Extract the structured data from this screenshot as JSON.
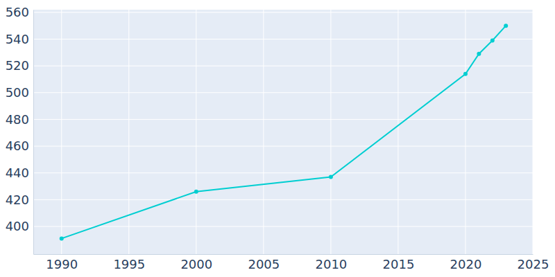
{
  "chart_data": {
    "type": "line",
    "x": [
      1990,
      2000,
      2010,
      2020,
      2021,
      2022,
      2023
    ],
    "values": [
      391,
      426,
      437,
      514,
      529,
      539,
      550
    ],
    "color": "#00ced1",
    "marker": "circle",
    "xlim": [
      1987.9,
      2025
    ],
    "ylim": [
      379.3,
      562
    ],
    "xticks": [
      1990,
      1995,
      2000,
      2005,
      2010,
      2015,
      2020,
      2025
    ],
    "yticks": [
      400,
      420,
      440,
      460,
      480,
      500,
      520,
      540,
      560
    ],
    "grid": true
  }
}
